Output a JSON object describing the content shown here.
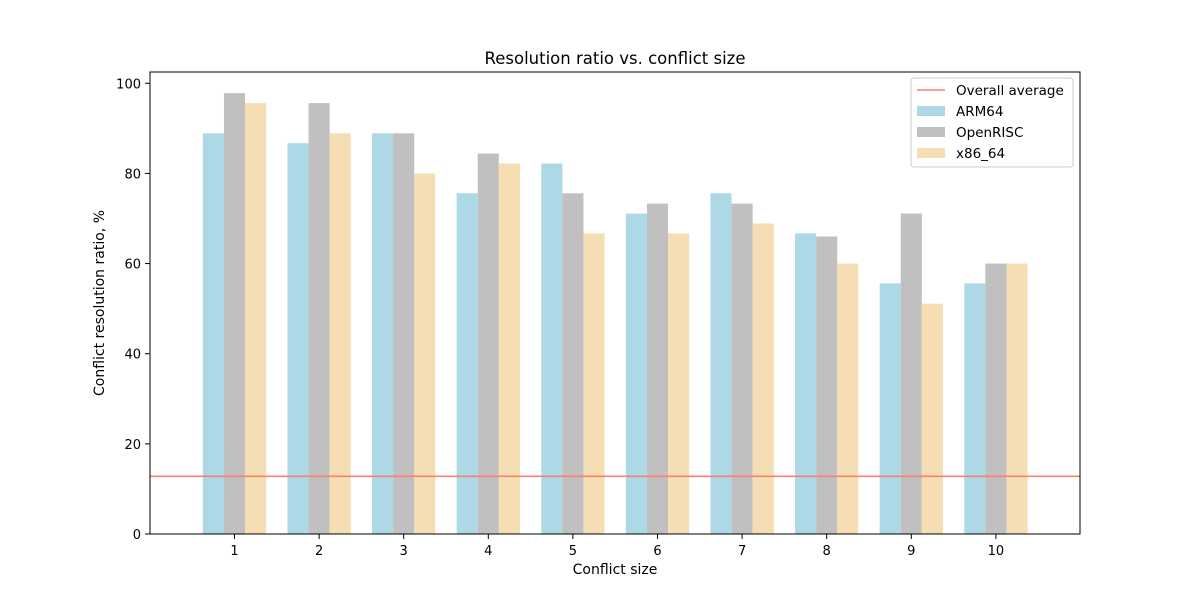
{
  "chart_data": {
    "type": "bar",
    "title": "Resolution ratio vs. conflict size",
    "xlabel": "Conflict size",
    "ylabel": "Conflict resolution ratio, %",
    "categories": [
      "1",
      "2",
      "3",
      "4",
      "5",
      "6",
      "7",
      "8",
      "9",
      "10"
    ],
    "ylim": [
      0,
      102.5
    ],
    "yticks": [
      0,
      20,
      40,
      60,
      80,
      100
    ],
    "grid": false,
    "legend_position": "top-right",
    "series": [
      {
        "name": "ARM64",
        "color": "#add8e6",
        "values": [
          88.9,
          86.7,
          88.9,
          75.6,
          82.2,
          71.1,
          75.6,
          66.7,
          55.6,
          55.6
        ]
      },
      {
        "name": "OpenRISC",
        "color": "#c0c0c0",
        "values": [
          97.8,
          95.6,
          88.9,
          84.4,
          75.6,
          73.3,
          73.3,
          66.0,
          71.1,
          60.0
        ]
      },
      {
        "name": "x86_64",
        "color": "#f5deb3",
        "values": [
          95.6,
          88.9,
          80.0,
          82.2,
          66.7,
          66.7,
          68.9,
          60.0,
          51.1,
          60.0
        ]
      }
    ],
    "reference_line": {
      "name": "Overall average",
      "value": 12.8,
      "color": "#fa8072"
    }
  }
}
